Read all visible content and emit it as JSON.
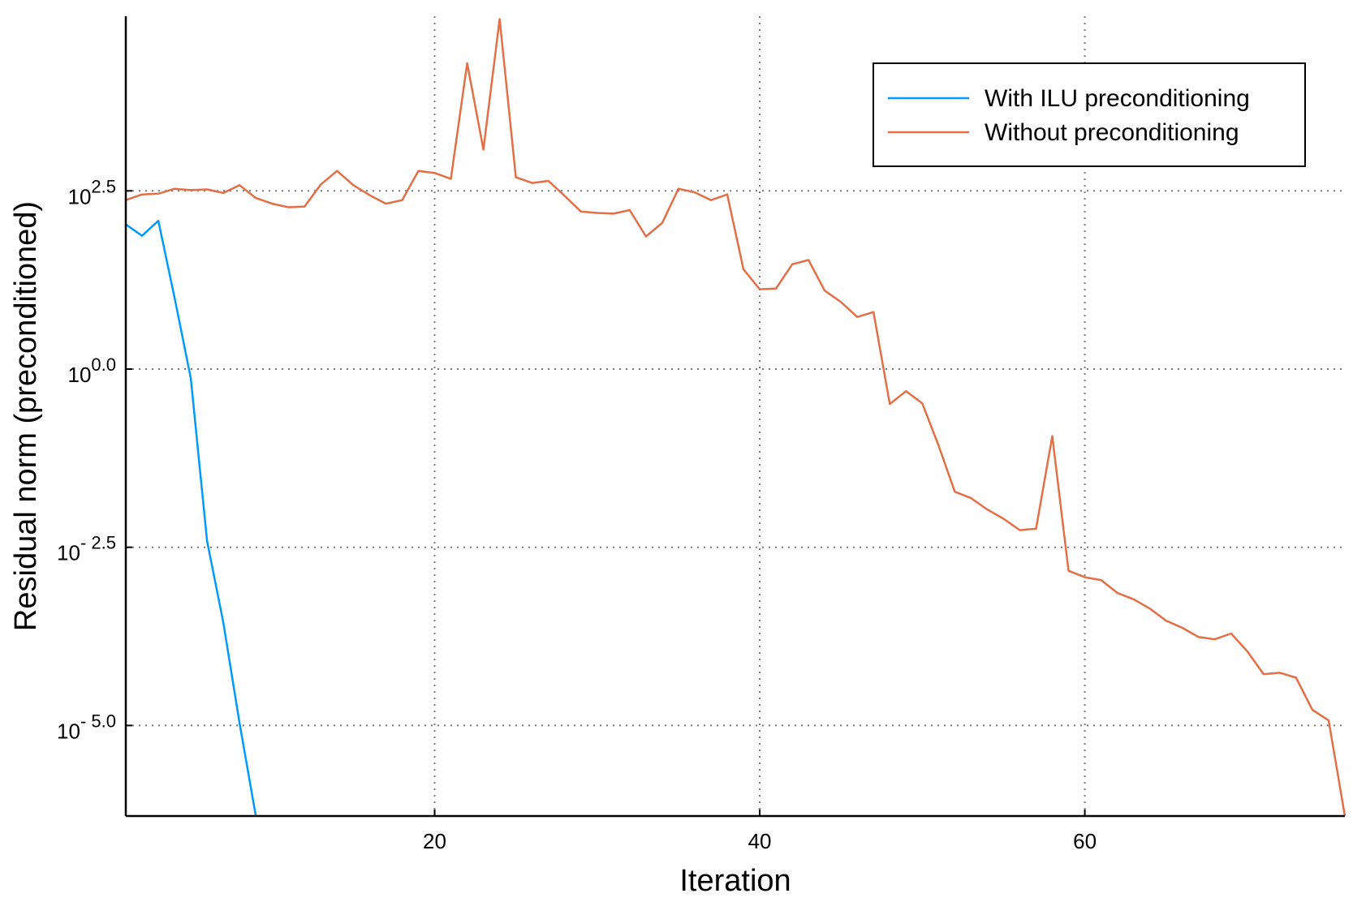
{
  "chart_data": {
    "type": "line",
    "title": "",
    "xlabel": "Iteration",
    "ylabel": "Residual norm (preconditioned)",
    "yscale": "log10",
    "xlim": [
      1,
      76
    ],
    "ylim_log10": [
      -6.27,
      4.95
    ],
    "grid": true,
    "legend_position": "top-right",
    "x_ticks": [
      20,
      40,
      60
    ],
    "y_ticks": [
      {
        "value_log10": 2.5,
        "base": "10",
        "exp": "2.5"
      },
      {
        "value_log10": 0.0,
        "base": "10",
        "exp": "0.0"
      },
      {
        "value_log10": -2.5,
        "base": "10",
        "exp": "- 2.5"
      },
      {
        "value_log10": -5.0,
        "base": "10",
        "exp": "- 5.0"
      }
    ],
    "series": [
      {
        "name": "With ILU preconditioning",
        "color": "#009af9",
        "x": [
          1,
          2,
          3,
          4,
          5,
          6,
          7,
          8,
          9
        ],
        "log10_y": [
          2.03,
          1.87,
          2.08,
          1.0,
          -0.13,
          -2.41,
          -3.56,
          -4.97,
          -6.27
        ]
      },
      {
        "name": "Without preconditioning",
        "color": "#e26f46",
        "x": [
          1,
          2,
          3,
          4,
          5,
          6,
          7,
          8,
          9,
          10,
          11,
          12,
          13,
          14,
          15,
          16,
          17,
          18,
          19,
          20,
          21,
          22,
          23,
          24,
          25,
          26,
          27,
          28,
          29,
          30,
          31,
          32,
          33,
          34,
          35,
          36,
          37,
          38,
          39,
          40,
          41,
          42,
          43,
          44,
          45,
          46,
          47,
          48,
          49,
          50,
          51,
          52,
          53,
          54,
          55,
          56,
          57,
          58,
          59,
          60,
          61,
          62,
          63,
          64,
          65,
          66,
          67,
          68,
          69,
          70,
          71,
          72,
          73,
          74,
          75,
          76
        ],
        "log10_y": [
          2.37,
          2.45,
          2.46,
          2.53,
          2.51,
          2.52,
          2.47,
          2.58,
          2.4,
          2.32,
          2.27,
          2.28,
          2.59,
          2.78,
          2.58,
          2.44,
          2.32,
          2.37,
          2.78,
          2.75,
          2.67,
          4.29,
          3.08,
          4.91,
          2.69,
          2.61,
          2.64,
          2.43,
          2.21,
          2.19,
          2.18,
          2.23,
          1.86,
          2.05,
          2.53,
          2.48,
          2.37,
          2.45,
          1.4,
          1.12,
          1.13,
          1.47,
          1.53,
          1.1,
          0.94,
          0.73,
          0.8,
          -0.49,
          -0.31,
          -0.48,
          -1.07,
          -1.72,
          -1.81,
          -1.97,
          -2.1,
          -2.26,
          -2.24,
          -0.94,
          -2.83,
          -2.92,
          -2.96,
          -3.14,
          -3.23,
          -3.36,
          -3.53,
          -3.63,
          -3.76,
          -3.79,
          -3.71,
          -3.96,
          -4.28,
          -4.26,
          -4.33,
          -4.78,
          -4.93,
          -6.27
        ]
      }
    ]
  }
}
